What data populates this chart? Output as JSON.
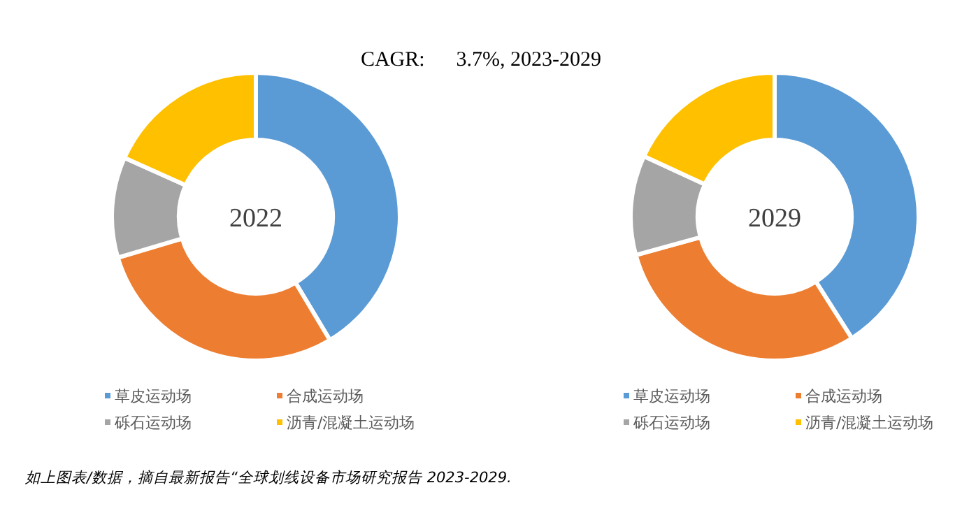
{
  "chart_data": [
    {
      "type": "donut",
      "title": "CAGR:      3.7%, 2023-2029",
      "annotations": [
        "2022"
      ],
      "categories": [
        "草皮运动场",
        "合成运动场",
        "砾石运动场",
        "沥青/混凝土运动场"
      ],
      "values": [
        41.4,
        29,
        11.3,
        18.3
      ],
      "colors": [
        "#5b9bd5",
        "#ed7d31",
        "#a5a5a5",
        "#ffc000"
      ],
      "legend": "bottom"
    },
    {
      "type": "donut",
      "annotations": [
        "2029",
        "如上图表/数据，摘自最新报告“全球划线设备市场研究报告 2023-2029."
      ],
      "categories": [
        "草皮运动场",
        "合成运动场",
        "砾石运动场",
        "沥青/混凝土运动场"
      ],
      "values": [
        41,
        29.7,
        11.2,
        18.1
      ],
      "colors": [
        "#5b9bd5",
        "#ed7d31",
        "#a5a5a5",
        "#ffc000"
      ],
      "legend": "bottom"
    }
  ]
}
